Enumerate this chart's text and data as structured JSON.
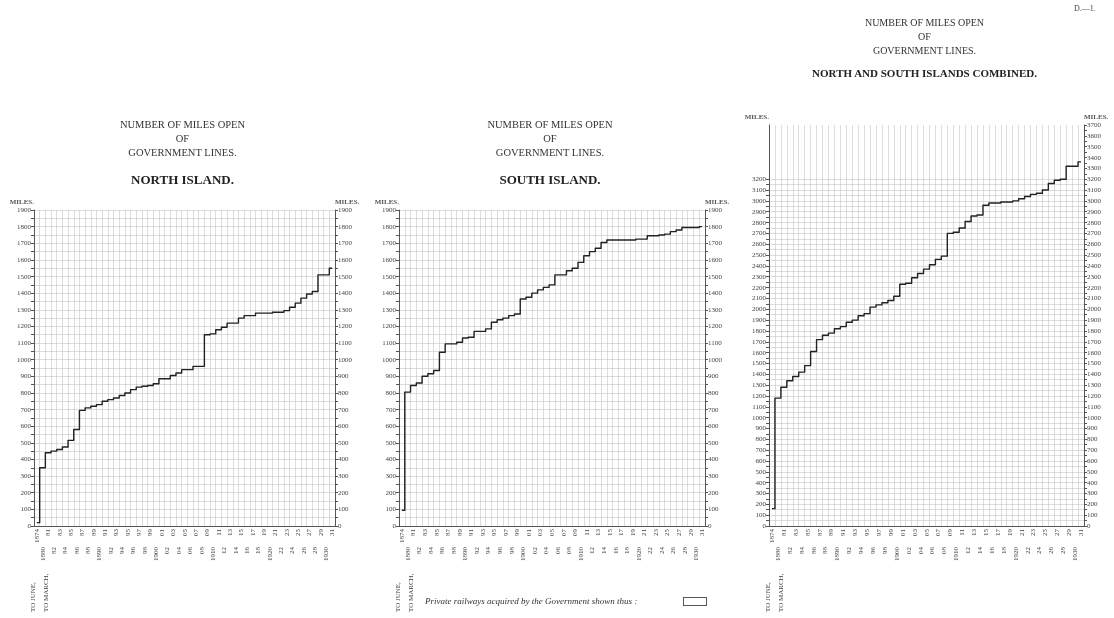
{
  "chart_data": [
    {
      "type": "step",
      "title": "NUMBER OF MILES OPEN\nOF\nGOVERNMENT LINES.",
      "subtitle": "NORTH ISLAND.",
      "ylabel": "MILES.",
      "y2label": "MILES.",
      "annotations": [
        "TO JUNE,",
        "TO MARCH,"
      ],
      "categories": [
        "1874",
        "1880",
        "81",
        "82",
        "83",
        "84",
        "85",
        "86",
        "87",
        "88",
        "89",
        "1890",
        "91",
        "92",
        "93",
        "94",
        "95",
        "96",
        "97",
        "98",
        "99",
        "1900",
        "01",
        "02",
        "03",
        "04",
        "05",
        "06",
        "07",
        "08",
        "09",
        "1910",
        "11",
        "12",
        "13",
        "14",
        "15",
        "16",
        "17",
        "18",
        "19",
        "1920",
        "21",
        "22",
        "23",
        "24",
        "25",
        "26",
        "27",
        "28",
        "29",
        "1930",
        "31"
      ],
      "series": [
        {
          "color": "#222222",
          "values": [
            20,
            350,
            440,
            450,
            460,
            475,
            515,
            580,
            695,
            710,
            720,
            730,
            750,
            760,
            770,
            785,
            800,
            820,
            835,
            840,
            845,
            855,
            885,
            885,
            905,
            920,
            940,
            940,
            960,
            960,
            1150,
            1155,
            1180,
            1195,
            1220,
            1220,
            1250,
            1265,
            1265,
            1280,
            1280,
            1280,
            1285,
            1285,
            1295,
            1315,
            1340,
            1370,
            1395,
            1410,
            1510,
            1510,
            1550
          ]
        }
      ],
      "ylim": [
        0,
        1900
      ],
      "y2lim": [
        0,
        1900
      ],
      "yticks": [
        0,
        {
          "value": 50,
          "label": null
        },
        100,
        {
          "value": 150,
          "label": null
        },
        200,
        {
          "value": 250,
          "label": null
        },
        300,
        {
          "value": 350,
          "label": null
        },
        400,
        {
          "value": 450,
          "label": null
        },
        500,
        {
          "value": 550,
          "label": null
        },
        600,
        {
          "value": 650,
          "label": null
        },
        700,
        {
          "value": 750,
          "label": null
        },
        800,
        {
          "value": 850,
          "label": null
        },
        900,
        {
          "value": 950,
          "label": null
        },
        1000,
        {
          "value": 1050,
          "label": null
        },
        1100,
        {
          "value": 1150,
          "label": null
        },
        1200,
        {
          "value": 1250,
          "label": null
        },
        1300,
        {
          "value": 1350,
          "label": null
        },
        1400,
        {
          "value": 1450,
          "label": null
        },
        1500,
        {
          "value": 1550,
          "label": null
        },
        1600,
        {
          "value": 1650,
          "label": null
        },
        1700,
        {
          "value": 1750,
          "label": null
        },
        1800,
        {
          "value": 1850,
          "label": null
        },
        1900
      ],
      "y2ticks": [
        0,
        {
          "value": 50,
          "label": null
        },
        100,
        {
          "value": 150,
          "label": null
        },
        200,
        {
          "value": 250,
          "label": null
        },
        300,
        {
          "value": 350,
          "label": null
        },
        400,
        {
          "value": 450,
          "label": null
        },
        500,
        {
          "value": 550,
          "label": null
        },
        600,
        {
          "value": 650,
          "label": null
        },
        700,
        {
          "value": 750,
          "label": null
        },
        800,
        {
          "value": 850,
          "label": null
        },
        900,
        {
          "value": 950,
          "label": null
        },
        1000,
        {
          "value": 1050,
          "label": null
        },
        1100,
        {
          "value": 1150,
          "label": null
        },
        1200,
        {
          "value": 1250,
          "label": null
        },
        1300,
        {
          "value": 1350,
          "label": null
        },
        1400,
        {
          "value": 1450,
          "label": null
        },
        1500,
        {
          "value": 1550,
          "label": null
        },
        1600,
        {
          "value": 1650,
          "label": null
        },
        1700,
        {
          "value": 1750,
          "label": null
        },
        1800,
        {
          "value": 1850,
          "label": null
        },
        1900
      ],
      "grid": true,
      "marker": "none",
      "line_style": "solid"
    },
    {
      "type": "step",
      "title": "NUMBER OF MILES OPEN\nOF\nGOVERNMENT LINES.",
      "subtitle": "SOUTH ISLAND.",
      "ylabel": "MILES.",
      "y2label": "MILES.",
      "annotations": [
        "TO JUNE,",
        "TO MARCH,",
        "Private railways acquired by the Government shown thus :"
      ],
      "categories": [
        "1874",
        "1880",
        "81",
        "82",
        "83",
        "84",
        "85",
        "86",
        "87",
        "88",
        "89",
        "1890",
        "91",
        "92",
        "93",
        "94",
        "95",
        "96",
        "97",
        "98",
        "99",
        "1900",
        "01",
        "02",
        "03",
        "04",
        "05",
        "06",
        "07",
        "08",
        "09",
        "1910",
        "11",
        "12",
        "13",
        "14",
        "15",
        "16",
        "17",
        "18",
        "19",
        "1920",
        "21",
        "22",
        "23",
        "24",
        "25",
        "26",
        "27",
        "28",
        "29",
        "1930",
        "31"
      ],
      "series": [
        {
          "color": "#222222",
          "values": [
            95,
            805,
            845,
            860,
            900,
            915,
            935,
            1045,
            1095,
            1095,
            1105,
            1130,
            1135,
            1170,
            1170,
            1185,
            1225,
            1240,
            1250,
            1265,
            1275,
            1365,
            1375,
            1400,
            1420,
            1435,
            1450,
            1510,
            1510,
            1535,
            1550,
            1585,
            1625,
            1650,
            1670,
            1705,
            1720,
            1720,
            1720,
            1720,
            1720,
            1725,
            1725,
            1745,
            1745,
            1750,
            1755,
            1770,
            1780,
            1795,
            1795,
            1795,
            1800
          ]
        }
      ],
      "ylim": [
        0,
        1900
      ],
      "y2lim": [
        0,
        1900
      ],
      "yticks": [
        0,
        {
          "value": 50,
          "label": null
        },
        100,
        {
          "value": 150,
          "label": null
        },
        200,
        {
          "value": 250,
          "label": null
        },
        300,
        {
          "value": 350,
          "label": null
        },
        400,
        {
          "value": 450,
          "label": null
        },
        500,
        {
          "value": 550,
          "label": null
        },
        600,
        {
          "value": 650,
          "label": null
        },
        700,
        {
          "value": 750,
          "label": null
        },
        800,
        {
          "value": 850,
          "label": null
        },
        900,
        {
          "value": 950,
          "label": null
        },
        1000,
        {
          "value": 1050,
          "label": null
        },
        1100,
        {
          "value": 1150,
          "label": null
        },
        1200,
        {
          "value": 1250,
          "label": null
        },
        1300,
        {
          "value": 1350,
          "label": null
        },
        1400,
        {
          "value": 1450,
          "label": null
        },
        1500,
        {
          "value": 1550,
          "label": null
        },
        1600,
        {
          "value": 1650,
          "label": null
        },
        1700,
        {
          "value": 1750,
          "label": null
        },
        1800,
        {
          "value": 1850,
          "label": null
        },
        1900
      ],
      "y2ticks": [
        0,
        {
          "value": 50,
          "label": null
        },
        100,
        {
          "value": 150,
          "label": null
        },
        200,
        {
          "value": 250,
          "label": null
        },
        300,
        {
          "value": 350,
          "label": null
        },
        400,
        {
          "value": 450,
          "label": null
        },
        500,
        {
          "value": 550,
          "label": null
        },
        600,
        {
          "value": 650,
          "label": null
        },
        700,
        {
          "value": 750,
          "label": null
        },
        800,
        {
          "value": 850,
          "label": null
        },
        900,
        {
          "value": 950,
          "label": null
        },
        1000,
        {
          "value": 1050,
          "label": null
        },
        1100,
        {
          "value": 1150,
          "label": null
        },
        1200,
        {
          "value": 1250,
          "label": null
        },
        1300,
        {
          "value": 1350,
          "label": null
        },
        1400,
        {
          "value": 1450,
          "label": null
        },
        1500,
        {
          "value": 1550,
          "label": null
        },
        1600,
        {
          "value": 1650,
          "label": null
        },
        1700,
        {
          "value": 1750,
          "label": null
        },
        1800,
        {
          "value": 1850,
          "label": null
        },
        1900
      ],
      "grid": true,
      "marker": "none",
      "line_style": "solid"
    },
    {
      "type": "step",
      "title": "NUMBER OF MILES OPEN\nOF\nGOVERNMENT LINES.",
      "subtitle": "NORTH AND SOUTH ISLANDS COMBINED.",
      "ylabel": "MILES.",
      "y2label": "MILES.",
      "annotations": [
        "TO JUNE,",
        "TO MARCH,",
        "D.—1."
      ],
      "categories": [
        "1874",
        "1880",
        "81",
        "82",
        "83",
        "84",
        "85",
        "86",
        "87",
        "88",
        "89",
        "1890",
        "91",
        "92",
        "93",
        "94",
        "95",
        "96",
        "97",
        "98",
        "99",
        "1900",
        "01",
        "02",
        "03",
        "04",
        "05",
        "06",
        "07",
        "08",
        "09",
        "1910",
        "11",
        "12",
        "13",
        "14",
        "15",
        "16",
        "17",
        "18",
        "19",
        "1920",
        "21",
        "22",
        "23",
        "24",
        "25",
        "26",
        "27",
        "28",
        "29",
        "1930",
        "31"
      ],
      "series": [
        {
          "color": "#222222",
          "values": [
            160,
            1180,
            1280,
            1340,
            1380,
            1420,
            1480,
            1610,
            1720,
            1760,
            1780,
            1820,
            1840,
            1880,
            1900,
            1940,
            1960,
            2020,
            2040,
            2060,
            2080,
            2120,
            2230,
            2240,
            2290,
            2330,
            2370,
            2410,
            2460,
            2490,
            2700,
            2710,
            2750,
            2810,
            2860,
            2870,
            2960,
            2980,
            2980,
            2990,
            2990,
            3000,
            3020,
            3040,
            3060,
            3070,
            3100,
            3160,
            3190,
            3200,
            3320,
            3320,
            3360
          ]
        }
      ],
      "ylim": [
        0,
        3700
      ],
      "y2lim": [
        0,
        3700
      ],
      "yticks": [
        0,
        {
          "value": 50,
          "label": null
        },
        100,
        {
          "value": 150,
          "label": null
        },
        200,
        {
          "value": 250,
          "label": null
        },
        300,
        {
          "value": 350,
          "label": null
        },
        400,
        {
          "value": 450,
          "label": null
        },
        500,
        {
          "value": 550,
          "label": null
        },
        600,
        {
          "value": 650,
          "label": null
        },
        700,
        {
          "value": 750,
          "label": null
        },
        800,
        {
          "value": 850,
          "label": null
        },
        900,
        {
          "value": 950,
          "label": null
        },
        1000,
        {
          "value": 1050,
          "label": null
        },
        1100,
        {
          "value": 1150,
          "label": null
        },
        1200,
        {
          "value": 1250,
          "label": null
        },
        1300,
        {
          "value": 1350,
          "label": null
        },
        1400,
        {
          "value": 1450,
          "label": null
        },
        1500,
        {
          "value": 1550,
          "label": null
        },
        1600,
        {
          "value": 1650,
          "label": null
        },
        1700,
        {
          "value": 1750,
          "label": null
        },
        1800,
        {
          "value": 1850,
          "label": null
        },
        1900,
        {
          "value": 1950,
          "label": null
        },
        2000,
        {
          "value": 2050,
          "label": null
        },
        2100,
        {
          "value": 2150,
          "label": null
        },
        2200,
        {
          "value": 2250,
          "label": null
        },
        2300,
        {
          "value": 2350,
          "label": null
        },
        2400,
        {
          "value": 2450,
          "label": null
        },
        2500,
        {
          "value": 2550,
          "label": null
        },
        2600,
        {
          "value": 2650,
          "label": null
        },
        2700,
        {
          "value": 2750,
          "label": null
        },
        2800,
        {
          "value": 2850,
          "label": null
        },
        2900,
        {
          "value": 2950,
          "label": null
        },
        3000,
        {
          "value": 3050,
          "label": null
        },
        3100,
        {
          "value": 3150,
          "label": null
        },
        3200
      ],
      "y2ticks": [
        0,
        {
          "value": 50,
          "label": null
        },
        100,
        {
          "value": 150,
          "label": null
        },
        200,
        {
          "value": 250,
          "label": null
        },
        300,
        {
          "value": 350,
          "label": null
        },
        400,
        {
          "value": 450,
          "label": null
        },
        500,
        {
          "value": 550,
          "label": null
        },
        600,
        {
          "value": 650,
          "label": null
        },
        700,
        {
          "value": 750,
          "label": null
        },
        800,
        {
          "value": 850,
          "label": null
        },
        900,
        {
          "value": 950,
          "label": null
        },
        1000,
        {
          "value": 1050,
          "label": null
        },
        1100,
        {
          "value": 1150,
          "label": null
        },
        1200,
        {
          "value": 1250,
          "label": null
        },
        1300,
        {
          "value": 1350,
          "label": null
        },
        1400,
        {
          "value": 1450,
          "label": null
        },
        1500,
        {
          "value": 1550,
          "label": null
        },
        1600,
        {
          "value": 1650,
          "label": null
        },
        1700,
        {
          "value": 1750,
          "label": null
        },
        1800,
        {
          "value": 1850,
          "label": null
        },
        1900,
        {
          "value": 1950,
          "label": null
        },
        2000,
        {
          "value": 2050,
          "label": null
        },
        2100,
        {
          "value": 2150,
          "label": null
        },
        2200,
        {
          "value": 2250,
          "label": null
        },
        2300,
        {
          "value": 2350,
          "label": null
        },
        2400,
        {
          "value": 2450,
          "label": null
        },
        2500,
        {
          "value": 2550,
          "label": null
        },
        2600,
        {
          "value": 2650,
          "label": null
        },
        2700,
        {
          "value": 2750,
          "label": null
        },
        2800,
        {
          "value": 2850,
          "label": null
        },
        2900,
        {
          "value": 2950,
          "label": null
        },
        3000,
        {
          "value": 3050,
          "label": null
        },
        3100,
        {
          "value": 3150,
          "label": null
        },
        3200,
        {
          "value": 3250,
          "label": null
        },
        3300,
        {
          "value": 3350,
          "label": null
        },
        3400,
        {
          "value": 3450,
          "label": null
        },
        3500,
        {
          "value": 3550,
          "label": null
        },
        3600,
        {
          "value": 3650,
          "label": null
        },
        3700
      ],
      "grid": true,
      "marker": "none",
      "line_style": "solid"
    }
  ]
}
